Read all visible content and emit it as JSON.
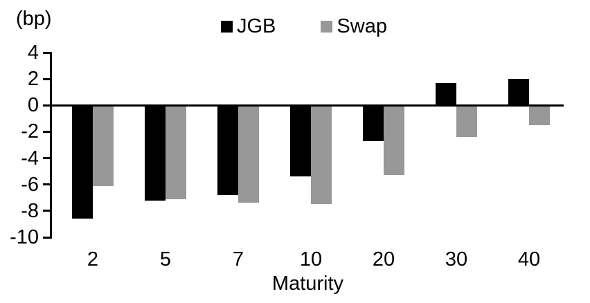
{
  "chart_data": {
    "type": "bar",
    "title": "",
    "unit_label": "(bp)",
    "xlabel": "Maturity",
    "ylabel": "",
    "categories": [
      "2",
      "5",
      "7",
      "10",
      "20",
      "30",
      "40"
    ],
    "series": [
      {
        "name": "JGB",
        "color": "#000000",
        "values": [
          -8.6,
          -7.2,
          -6.8,
          -5.4,
          -2.7,
          1.7,
          2.0
        ]
      },
      {
        "name": "Swap",
        "color": "#989898",
        "values": [
          -6.1,
          -7.1,
          -7.4,
          -7.5,
          -5.3,
          -2.4,
          -1.5
        ]
      }
    ],
    "ylim": [
      -10,
      4
    ],
    "yticks": [
      4,
      2,
      0,
      -2,
      -4,
      -6,
      -8,
      -10
    ],
    "ytick_step": 2,
    "legend_position": "top-center",
    "grid": false,
    "axis_color": "#000000",
    "background_color": "#ffffff"
  }
}
